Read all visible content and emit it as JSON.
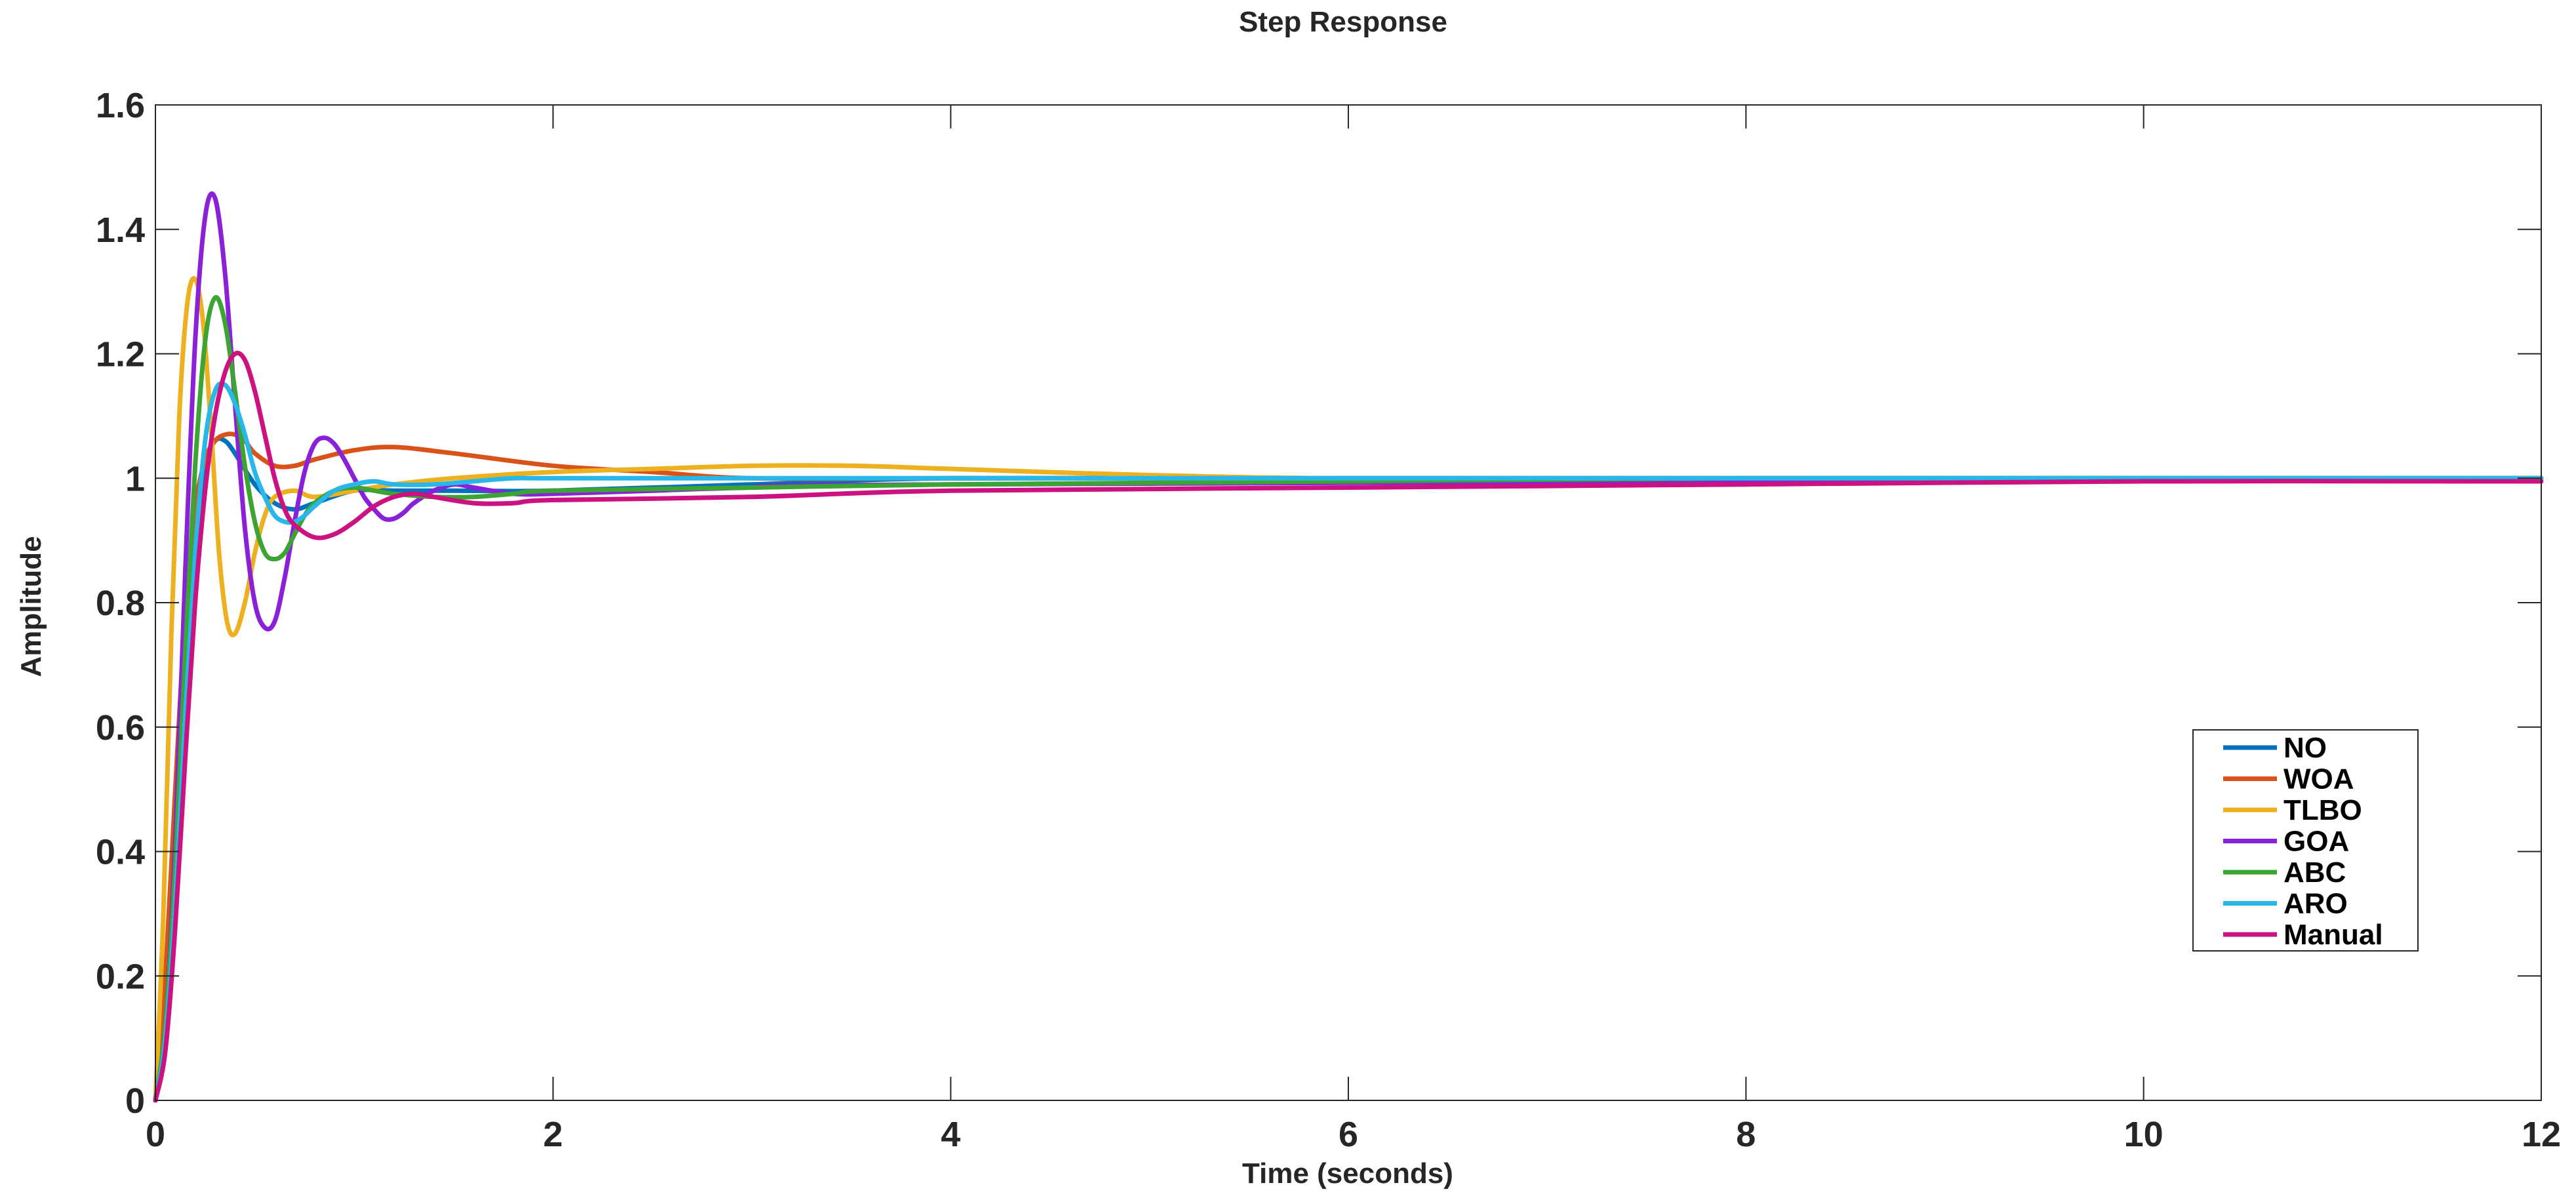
{
  "chart_data": {
    "type": "line",
    "title": "Step Response",
    "xlabel": "Time (seconds)",
    "ylabel": "Amplitude",
    "xlim": [
      0,
      12
    ],
    "ylim": [
      0,
      1.6
    ],
    "xticks": [
      0,
      2,
      4,
      6,
      8,
      10,
      12
    ],
    "xtick_labels": [
      "0",
      "2",
      "4",
      "6",
      "8",
      "10",
      "12"
    ],
    "yticks": [
      0,
      0.2,
      0.4,
      0.6,
      0.8,
      1,
      1.2,
      1.4,
      1.6
    ],
    "ytick_labels": [
      "0",
      "0.2",
      "0.4",
      "0.6",
      "0.8",
      "1",
      "1.2",
      "1.4",
      "1.6"
    ],
    "grid": false,
    "legend_position": "lower-right",
    "series": [
      {
        "name": "NO",
        "color": "#0072BD",
        "x": [
          0,
          0.05,
          0.1,
          0.15,
          0.2,
          0.25,
          0.3,
          0.35,
          0.4,
          0.5,
          0.6,
          0.7,
          0.8,
          1.0,
          1.2,
          1.5,
          2,
          3,
          4,
          6,
          8,
          10,
          12
        ],
        "y": [
          0,
          0.15,
          0.42,
          0.7,
          0.9,
          1.02,
          1.06,
          1.06,
          1.04,
          0.99,
          0.96,
          0.95,
          0.96,
          0.98,
          0.98,
          0.98,
          0.98,
          0.99,
          1.0,
          1.0,
          1.0,
          1.0,
          1.0
        ]
      },
      {
        "name": "WOA",
        "color": "#D95319",
        "x": [
          0,
          0.05,
          0.1,
          0.15,
          0.2,
          0.25,
          0.3,
          0.35,
          0.4,
          0.45,
          0.5,
          0.6,
          0.7,
          0.8,
          1.0,
          1.2,
          1.5,
          2,
          2.5,
          3,
          4,
          6,
          8,
          12
        ],
        "y": [
          0,
          0.2,
          0.5,
          0.78,
          0.95,
          1.03,
          1.06,
          1.07,
          1.07,
          1.06,
          1.04,
          1.02,
          1.02,
          1.03,
          1.045,
          1.05,
          1.04,
          1.02,
          1.01,
          1.0,
          1.0,
          1.0,
          1.0,
          1.0
        ]
      },
      {
        "name": "TLBO",
        "color": "#EDB120",
        "x": [
          0,
          0.04,
          0.08,
          0.12,
          0.16,
          0.2,
          0.24,
          0.28,
          0.32,
          0.36,
          0.4,
          0.45,
          0.5,
          0.55,
          0.6,
          0.7,
          0.8,
          1.0,
          1.2,
          1.5,
          2,
          2.5,
          3,
          3.5,
          4,
          5,
          6,
          8,
          12
        ],
        "y": [
          0,
          0.3,
          0.75,
          1.1,
          1.28,
          1.32,
          1.25,
          1.08,
          0.88,
          0.77,
          0.75,
          0.8,
          0.88,
          0.94,
          0.97,
          0.98,
          0.97,
          0.98,
          0.99,
          1.0,
          1.01,
          1.015,
          1.02,
          1.02,
          1.015,
          1.005,
          1.0,
          1.0,
          1.0
        ]
      },
      {
        "name": "GOA",
        "color": "#8B20D9",
        "x": [
          0,
          0.05,
          0.1,
          0.15,
          0.2,
          0.25,
          0.3,
          0.35,
          0.4,
          0.45,
          0.5,
          0.55,
          0.6,
          0.65,
          0.7,
          0.75,
          0.8,
          0.85,
          0.9,
          0.95,
          1.0,
          1.05,
          1.1,
          1.15,
          1.2,
          1.25,
          1.3,
          1.4,
          1.5,
          1.6,
          1.8,
          2,
          2.5,
          3,
          4,
          12
        ],
        "y": [
          0,
          0.12,
          0.42,
          0.85,
          1.22,
          1.42,
          1.45,
          1.33,
          1.12,
          0.92,
          0.8,
          0.76,
          0.77,
          0.84,
          0.93,
          1.01,
          1.055,
          1.065,
          1.055,
          1.03,
          1.0,
          0.97,
          0.95,
          0.935,
          0.935,
          0.945,
          0.96,
          0.98,
          0.99,
          0.985,
          0.975,
          0.975,
          0.98,
          0.985,
          0.99,
          1.0
        ]
      },
      {
        "name": "ABC",
        "color": "#3BA432",
        "x": [
          0,
          0.05,
          0.1,
          0.15,
          0.2,
          0.25,
          0.3,
          0.35,
          0.4,
          0.45,
          0.5,
          0.55,
          0.6,
          0.65,
          0.7,
          0.75,
          0.8,
          0.9,
          1.0,
          1.1,
          1.2,
          1.4,
          1.6,
          1.8,
          2,
          3,
          4,
          6,
          8,
          12
        ],
        "y": [
          0,
          0.12,
          0.38,
          0.72,
          1.02,
          1.22,
          1.29,
          1.25,
          1.14,
          1.02,
          0.93,
          0.88,
          0.87,
          0.88,
          0.91,
          0.94,
          0.96,
          0.98,
          0.985,
          0.98,
          0.975,
          0.97,
          0.97,
          0.975,
          0.98,
          0.985,
          0.99,
          0.995,
          1.0,
          1.0
        ]
      },
      {
        "name": "ARO",
        "color": "#29B6E8",
        "x": [
          0,
          0.05,
          0.1,
          0.15,
          0.2,
          0.25,
          0.3,
          0.35,
          0.4,
          0.45,
          0.5,
          0.55,
          0.6,
          0.65,
          0.7,
          0.75,
          0.8,
          0.9,
          1.0,
          1.1,
          1.2,
          1.4,
          1.6,
          1.8,
          2,
          3,
          4,
          6,
          12
        ],
        "y": [
          0,
          0.1,
          0.32,
          0.62,
          0.88,
          1.06,
          1.14,
          1.15,
          1.12,
          1.07,
          1.01,
          0.97,
          0.94,
          0.93,
          0.93,
          0.94,
          0.955,
          0.98,
          0.99,
          0.995,
          0.99,
          0.99,
          0.995,
          1.0,
          1.0,
          1.0,
          1.0,
          1.0,
          1.0
        ]
      },
      {
        "name": "Manual",
        "color": "#CC1181",
        "x": [
          0,
          0.05,
          0.1,
          0.15,
          0.2,
          0.25,
          0.3,
          0.35,
          0.4,
          0.45,
          0.5,
          0.55,
          0.6,
          0.65,
          0.7,
          0.8,
          0.9,
          1.0,
          1.1,
          1.2,
          1.3,
          1.4,
          1.6,
          1.8,
          2,
          3,
          4,
          6,
          8,
          10,
          12
        ],
        "y": [
          0,
          0.08,
          0.28,
          0.55,
          0.8,
          0.98,
          1.1,
          1.17,
          1.2,
          1.19,
          1.14,
          1.07,
          1.0,
          0.95,
          0.925,
          0.905,
          0.91,
          0.93,
          0.955,
          0.97,
          0.975,
          0.97,
          0.96,
          0.96,
          0.965,
          0.97,
          0.98,
          0.985,
          0.99,
          0.995,
          0.995
        ]
      }
    ]
  }
}
